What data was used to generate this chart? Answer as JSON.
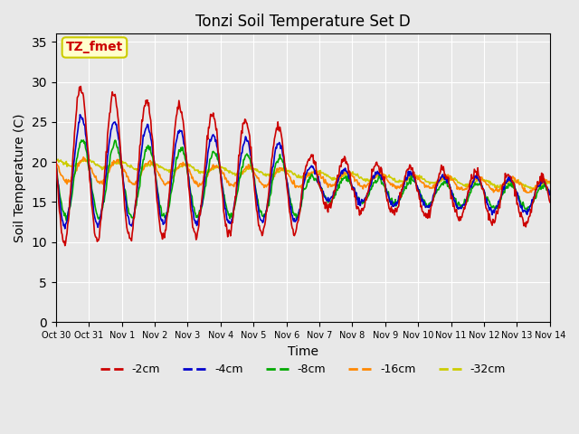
{
  "title": "Tonzi Soil Temperature Set D",
  "xlabel": "Time",
  "ylabel": "Soil Temperature (C)",
  "ylim": [
    0,
    36
  ],
  "yticks": [
    0,
    5,
    10,
    15,
    20,
    25,
    30,
    35
  ],
  "xtick_labels": [
    "Oct 30",
    "Oct 31",
    "Nov 1",
    "Nov 2",
    "Nov 3",
    "Nov 4",
    "Nov 5",
    "Nov 6",
    "Nov 7",
    "Nov 8",
    "Nov 9",
    "Nov 10",
    "Nov 11",
    "Nov 12",
    "Nov 13",
    "Nov 14"
  ],
  "legend_labels": [
    "-2cm",
    "-4cm",
    "-8cm",
    "-16cm",
    "-32cm"
  ],
  "colors": {
    "-2cm": "#cc0000",
    "-4cm": "#0000cc",
    "-8cm": "#00aa00",
    "-16cm": "#ff8800",
    "-32cm": "#cccc00"
  },
  "annotation_text": "TZ_fmet",
  "annotation_color": "#cc0000",
  "annotation_bg": "#ffffcc",
  "annotation_border": "#cccc00",
  "background_color": "#e8e8e8",
  "plot_bg": "#e8e8e8"
}
